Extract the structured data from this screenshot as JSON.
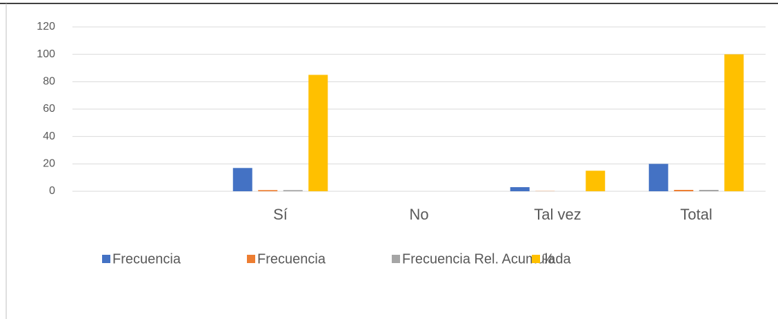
{
  "chart_data": {
    "type": "bar",
    "categories": [
      null,
      "Sí",
      "No",
      "Tal vez",
      "Total"
    ],
    "series": [
      {
        "name": "Frecuencia",
        "color": "#4472c4",
        "values": [
          null,
          17,
          0,
          3,
          20
        ]
      },
      {
        "name": "Frecuencia",
        "color": "#ed7d31",
        "values": [
          null,
          0.85,
          0,
          0.15,
          1
        ]
      },
      {
        "name": "Frecuencia Rel. Acumulada",
        "color": "#a5a5a5",
        "values": [
          null,
          0.85,
          0,
          0,
          1
        ]
      },
      {
        "name": "%",
        "color": "#ffc000",
        "values": [
          null,
          85,
          0,
          15,
          100
        ]
      }
    ],
    "ylim": [
      0,
      120
    ],
    "yticks": [
      0,
      20,
      40,
      60,
      80,
      100,
      120
    ],
    "grid": true,
    "legend": "bottom"
  }
}
